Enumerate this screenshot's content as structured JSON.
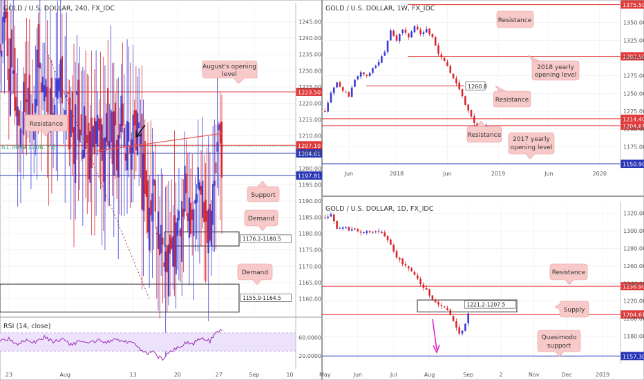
{
  "colors": {
    "up": "#3b3bd6",
    "down": "#d8262e",
    "resistance": "#e03a3a",
    "support": "#2a36b8",
    "callout_fill": "#f8c9c9",
    "callout_text": "#333333",
    "axis_text": "#555555",
    "fib": "#2fb38a",
    "rsi_line": "#9c27b0",
    "rsi_band": "#ece2fb",
    "arrow_pink": "#e020d0",
    "trendline": "#e85a5a"
  },
  "chart_data": [
    {
      "id": "h4",
      "type": "candlestick",
      "title": "GOLD / U.S. DOLLAR, 240, FX_IDC",
      "ylim": [
        1155,
        1250
      ],
      "xlim": [
        0,
        100
      ],
      "y_ticks": [
        "1245.00",
        "1240.00",
        "1235.00",
        "1230.00",
        "1225.00",
        "1220.00",
        "1215.00",
        "1210.00",
        "1205.00",
        "1200.00",
        "1195.00",
        "1190.00",
        "1185.00",
        "1180.00",
        "1175.00",
        "1170.00",
        "1165.00",
        "1160.00"
      ],
      "y_tick_values": [
        1245,
        1240,
        1235,
        1230,
        1225,
        1220,
        1215,
        1210,
        1205,
        1200,
        1195,
        1190,
        1185,
        1180,
        1175,
        1170,
        1165,
        1160
      ],
      "x_ticks": [
        {
          "label": "23",
          "x": 3
        },
        {
          "label": "Aug",
          "x": 22
        },
        {
          "label": "13",
          "x": 45
        },
        {
          "label": "20",
          "x": 60
        },
        {
          "label": "27",
          "x": 74
        },
        {
          "label": "Sep",
          "x": 86
        },
        {
          "label": "10",
          "x": 98
        }
      ],
      "close_path": [
        [
          0,
          1238
        ],
        [
          2,
          1243
        ],
        [
          3,
          1232
        ],
        [
          5,
          1222
        ],
        [
          7,
          1214
        ],
        [
          9,
          1225
        ],
        [
          11,
          1218
        ],
        [
          13,
          1230
        ],
        [
          15,
          1227
        ],
        [
          17,
          1218
        ],
        [
          19,
          1220
        ],
        [
          21,
          1226
        ],
        [
          23,
          1214
        ],
        [
          25,
          1210
        ],
        [
          27,
          1218
        ],
        [
          29,
          1206
        ],
        [
          31,
          1200
        ],
        [
          33,
          1212
        ],
        [
          35,
          1206
        ],
        [
          37,
          1214
        ],
        [
          39,
          1206
        ],
        [
          41,
          1212
        ],
        [
          43,
          1210
        ],
        [
          45,
          1212
        ],
        [
          47,
          1206
        ],
        [
          48,
          1196
        ],
        [
          49,
          1200
        ],
        [
          50,
          1182
        ],
        [
          52,
          1194
        ],
        [
          53,
          1190
        ],
        [
          54,
          1176
        ],
        [
          55,
          1171
        ],
        [
          56,
          1176
        ],
        [
          57,
          1178
        ],
        [
          58,
          1172
        ],
        [
          60,
          1180
        ],
        [
          62,
          1188
        ],
        [
          63,
          1193
        ],
        [
          65,
          1189
        ],
        [
          67,
          1196
        ],
        [
          69,
          1192
        ],
        [
          70,
          1185
        ],
        [
          72,
          1190
        ],
        [
          73,
          1200
        ],
        [
          74,
          1206
        ],
        [
          75,
          1205
        ]
      ],
      "levels": [
        {
          "value": 1223.5,
          "label": "1223.50",
          "color": "resistance"
        },
        {
          "value": 1207.1,
          "label": "1207.10",
          "color": "resistance"
        },
        {
          "value": 1204.61,
          "label": "1204.61",
          "color": "support"
        },
        {
          "value": 1197.81,
          "label": "1197.81",
          "color": "support"
        }
      ],
      "fib_label": "61.80%(1206.73)",
      "fib_value": 1206.73,
      "zones": [
        {
          "label": "1176.2-1180.5",
          "top": 1180.5,
          "bottom": 1176.2
        },
        {
          "label": "1155.9-1164.5",
          "top": 1164.5,
          "bottom": 1155.9
        }
      ],
      "annotations": [
        "August's opening level",
        "Resistance",
        "Support",
        "Demand",
        "Demand"
      ],
      "rsi": {
        "label": "RSI (14, close)",
        "ylim": [
          0,
          100
        ],
        "ticks": [
          "60.0000",
          "20.0000"
        ],
        "tick_values": [
          60,
          20
        ],
        "band": [
          30,
          70
        ],
        "values": [
          [
            0,
            52
          ],
          [
            3,
            58
          ],
          [
            6,
            45
          ],
          [
            9,
            55
          ],
          [
            12,
            48
          ],
          [
            15,
            62
          ],
          [
            18,
            50
          ],
          [
            21,
            55
          ],
          [
            24,
            44
          ],
          [
            27,
            52
          ],
          [
            30,
            46
          ],
          [
            33,
            55
          ],
          [
            36,
            48
          ],
          [
            39,
            55
          ],
          [
            42,
            50
          ],
          [
            44,
            52
          ],
          [
            46,
            45
          ],
          [
            48,
            30
          ],
          [
            50,
            25
          ],
          [
            52,
            30
          ],
          [
            53,
            18
          ],
          [
            55,
            14
          ],
          [
            57,
            26
          ],
          [
            59,
            35
          ],
          [
            61,
            42
          ],
          [
            63,
            48
          ],
          [
            65,
            44
          ],
          [
            67,
            56
          ],
          [
            69,
            58
          ],
          [
            71,
            52
          ],
          [
            72,
            62
          ],
          [
            73,
            74
          ],
          [
            75,
            76
          ]
        ]
      }
    },
    {
      "id": "weekly",
      "type": "candlestick",
      "title": "GOLD / U.S. DOLLAR, 1W, FX_IDC",
      "ylim": [
        1148,
        1378
      ],
      "xlim": [
        0,
        100
      ],
      "y_ticks": [
        "1350.00",
        "1325.00",
        "1300.00",
        "1275.00",
        "1250.00",
        "1225.00",
        "1200.00",
        "1175.00"
      ],
      "y_tick_values": [
        1350,
        1325,
        1300,
        1275,
        1250,
        1225,
        1200,
        1175
      ],
      "x_ticks": [
        {
          "label": "Jun",
          "x": 9
        },
        {
          "label": "2018",
          "x": 25
        },
        {
          "label": "Jun",
          "x": 42
        },
        {
          "label": "2019",
          "x": 59
        },
        {
          "label": "Jun",
          "x": 76
        },
        {
          "label": "2020",
          "x": 93
        }
      ],
      "close_path": [
        [
          1,
          1225
        ],
        [
          3,
          1250
        ],
        [
          5,
          1265
        ],
        [
          7,
          1255
        ],
        [
          9,
          1245
        ],
        [
          11,
          1270
        ],
        [
          13,
          1280
        ],
        [
          15,
          1275
        ],
        [
          17,
          1285
        ],
        [
          19,
          1295
        ],
        [
          21,
          1310
        ],
        [
          23,
          1340
        ],
        [
          25,
          1325
        ],
        [
          27,
          1340
        ],
        [
          29,
          1330
        ],
        [
          31,
          1345
        ],
        [
          33,
          1335
        ],
        [
          35,
          1340
        ],
        [
          37,
          1330
        ],
        [
          39,
          1305
        ],
        [
          41,
          1295
        ],
        [
          43,
          1280
        ],
        [
          45,
          1265
        ],
        [
          47,
          1245
        ],
        [
          49,
          1225
        ],
        [
          51,
          1210
        ],
        [
          53,
          1190
        ],
        [
          55,
          1205
        ]
      ],
      "levels": [
        {
          "value": 1375.5,
          "label": "1375.50",
          "color": "resistance"
        },
        {
          "value": 1302.5,
          "label": "1302.50",
          "color": "resistance"
        },
        {
          "value": 1260.8,
          "label": "1260.8",
          "color": "plain"
        },
        {
          "value": 1214.4,
          "label": "1214.40",
          "color": "resistance"
        },
        {
          "value": 1204.61,
          "label": "1204.61",
          "color": "resistance"
        },
        {
          "value": 1150.9,
          "label": "1150.90",
          "color": "support"
        }
      ],
      "annotations": [
        "Resistance",
        "2018 yearly opening level",
        "Resistance",
        "Resistance",
        "2017 yearly opening level"
      ]
    },
    {
      "id": "daily",
      "type": "candlestick",
      "title": "GOLD / U.S. DOLLAR, 1D, FX_IDC",
      "ylim": [
        1152,
        1330
      ],
      "xlim": [
        0,
        100
      ],
      "y_ticks": [
        "1320.00",
        "1300.00",
        "1280.00",
        "1260.00",
        "1240.00",
        "1220.00",
        "1200.00",
        "1180.00"
      ],
      "y_tick_values": [
        1320,
        1300,
        1280,
        1260,
        1240,
        1220,
        1200,
        1180
      ],
      "x_ticks": [
        {
          "label": "May",
          "x": 1
        },
        {
          "label": "Jun",
          "x": 12
        },
        {
          "label": "Jul",
          "x": 24
        },
        {
          "label": "Aug",
          "x": 36
        },
        {
          "label": "Sep",
          "x": 49
        },
        {
          "label": "2",
          "x": 60
        },
        {
          "label": "Nov",
          "x": 71
        },
        {
          "label": "Dec",
          "x": 82
        },
        {
          "label": "2019",
          "x": 94
        }
      ],
      "close_path": [
        [
          1,
          1315
        ],
        [
          3,
          1318
        ],
        [
          5,
          1302
        ],
        [
          7,
          1305
        ],
        [
          9,
          1300
        ],
        [
          11,
          1302
        ],
        [
          13,
          1298
        ],
        [
          15,
          1300
        ],
        [
          17,
          1298
        ],
        [
          19,
          1300
        ],
        [
          21,
          1295
        ],
        [
          23,
          1285
        ],
        [
          25,
          1270
        ],
        [
          27,
          1262
        ],
        [
          29,
          1258
        ],
        [
          31,
          1250
        ],
        [
          33,
          1240
        ],
        [
          35,
          1232
        ],
        [
          37,
          1222
        ],
        [
          39,
          1215
        ],
        [
          41,
          1212
        ],
        [
          43,
          1205
        ],
        [
          44,
          1198
        ],
        [
          45,
          1190
        ],
        [
          46,
          1182
        ],
        [
          47,
          1185
        ],
        [
          48,
          1195
        ],
        [
          49,
          1205
        ]
      ],
      "levels": [
        {
          "value": 1236.9,
          "label": "1236.90",
          "color": "resistance"
        },
        {
          "value": 1204.61,
          "label": "1204.61",
          "color": "resistance"
        },
        {
          "value": 1157.3,
          "label": "1157.30",
          "color": "support"
        }
      ],
      "zones": [
        {
          "label": "1221.2-1207.5",
          "top": 1221.2,
          "bottom": 1207.5
        }
      ],
      "annotations": [
        "Resistance",
        "Supply",
        "Quasimodo support"
      ]
    }
  ]
}
